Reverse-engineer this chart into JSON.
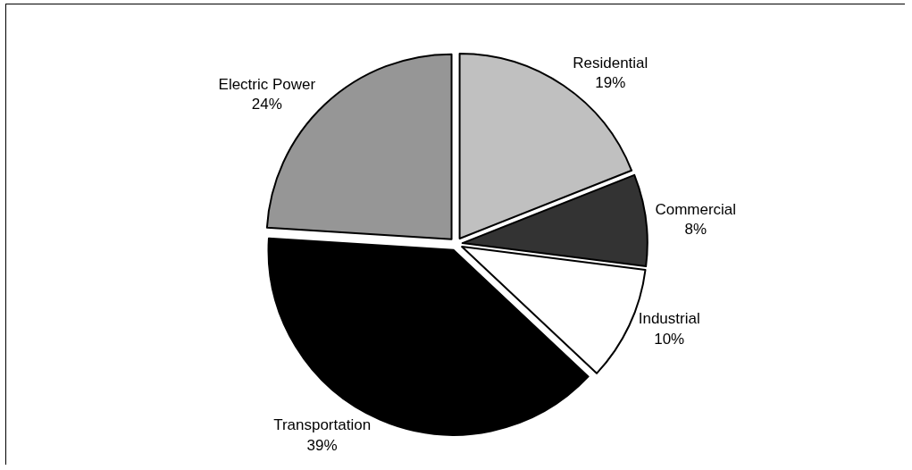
{
  "chart_data": {
    "type": "pie",
    "categories": [
      "Residential",
      "Commercial",
      "Industrial",
      "Transportation",
      "Electric Power"
    ],
    "values": [
      19,
      8,
      10,
      39,
      24
    ],
    "value_labels": [
      "19%",
      "8%",
      "10%",
      "39%",
      "24%"
    ],
    "colors": [
      "#c0c0c0",
      "#333333",
      "#ffffff",
      "#000000",
      "#969696"
    ]
  }
}
